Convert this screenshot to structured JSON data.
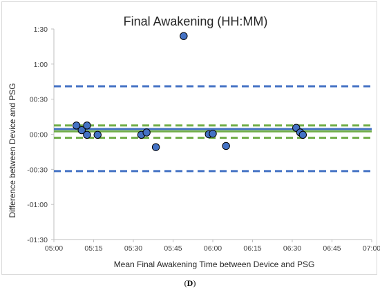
{
  "caption": {
    "prefix": "(",
    "label": "D",
    "suffix": ")"
  },
  "chart_data": {
    "type": "scatter",
    "title": "Final Awakening (HH:MM)",
    "xlabel": "Mean Final Awakening Time between Device and PSG",
    "ylabel": "Difference between Device and PSG",
    "x_unit": "minutes since 05:00",
    "y_unit": "minutes",
    "xlim": [
      0,
      120
    ],
    "ylim": [
      -90,
      90
    ],
    "x_ticks": [
      0,
      15,
      30,
      45,
      60,
      75,
      90,
      105,
      120
    ],
    "x_tick_labels": [
      "05:00",
      "05:15",
      "05:30",
      "05:45",
      "06:00",
      "06:15",
      "06:30",
      "06:45",
      "07:00"
    ],
    "y_ticks": [
      90,
      60,
      30,
      0,
      -30,
      -60,
      -90
    ],
    "y_tick_labels": [
      "1:30",
      "1:00",
      "00:30",
      "00:00",
      "-00:30",
      "-01:00",
      "-01:30"
    ],
    "grid": false,
    "points": [
      {
        "x": 8.5,
        "y": 7.5
      },
      {
        "x": 10.5,
        "y": 3.5
      },
      {
        "x": 12.5,
        "y": 7.5
      },
      {
        "x": 12.5,
        "y": -0.5
      },
      {
        "x": 16.5,
        "y": -0.5
      },
      {
        "x": 33,
        "y": -0.5
      },
      {
        "x": 35,
        "y": 1.5
      },
      {
        "x": 38.5,
        "y": -11
      },
      {
        "x": 49,
        "y": 84
      },
      {
        "x": 58.5,
        "y": 0
      },
      {
        "x": 60,
        "y": 0.5
      },
      {
        "x": 65,
        "y": -10
      },
      {
        "x": 91.5,
        "y": 5.5
      },
      {
        "x": 93,
        "y": 1.5
      },
      {
        "x": 94,
        "y": -0.5
      }
    ],
    "reference_lines": [
      {
        "kind": "mean-bias",
        "y": 4.5,
        "style": "solid",
        "color": "#4472c4"
      },
      {
        "kind": "upper-limit-of-agreement",
        "y": 41,
        "style": "dashed",
        "color": "#4472c4"
      },
      {
        "kind": "lower-limit-of-agreement",
        "y": -31.5,
        "style": "dashed",
        "color": "#4472c4"
      },
      {
        "kind": "bias-ci-center",
        "y": 2.5,
        "style": "solid",
        "color": "#70ad47"
      },
      {
        "kind": "bias-ci-upper",
        "y": 7.5,
        "style": "dashed",
        "color": "#70ad47"
      },
      {
        "kind": "bias-ci-lower",
        "y": -3,
        "style": "dashed",
        "color": "#70ad47"
      }
    ],
    "colors": {
      "marker_fill": "#4472c4",
      "marker_stroke": "#000000",
      "axis": "#bfbfbf"
    }
  }
}
